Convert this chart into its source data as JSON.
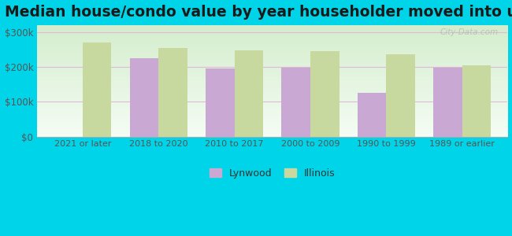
{
  "title": "Median house/condo value by year householder moved into unit",
  "categories": [
    "2021 or later",
    "2018 to 2020",
    "2010 to 2017",
    "2000 to 2009",
    "1990 to 1999",
    "1989 or earlier"
  ],
  "lynwood": [
    null,
    225000,
    195000,
    197000,
    125000,
    197000
  ],
  "illinois": [
    270000,
    255000,
    248000,
    245000,
    235000,
    205000
  ],
  "lynwood_color": "#c9a8d4",
  "illinois_color": "#c8d9a0",
  "background_outer": "#00d4e8",
  "background_inner_top": "#f5fdf5",
  "background_inner_bottom": "#d4edcc",
  "ylim": [
    0,
    320000
  ],
  "ytick_labels": [
    "$0",
    "$100k",
    "$200k",
    "$300k"
  ],
  "ytick_values": [
    0,
    100000,
    200000,
    300000
  ],
  "legend_lynwood": "Lynwood",
  "legend_illinois": "Illinois",
  "watermark": "City-Data.com",
  "bar_width": 0.38,
  "title_fontsize": 13.5,
  "grid_color": "#e0b8d8"
}
